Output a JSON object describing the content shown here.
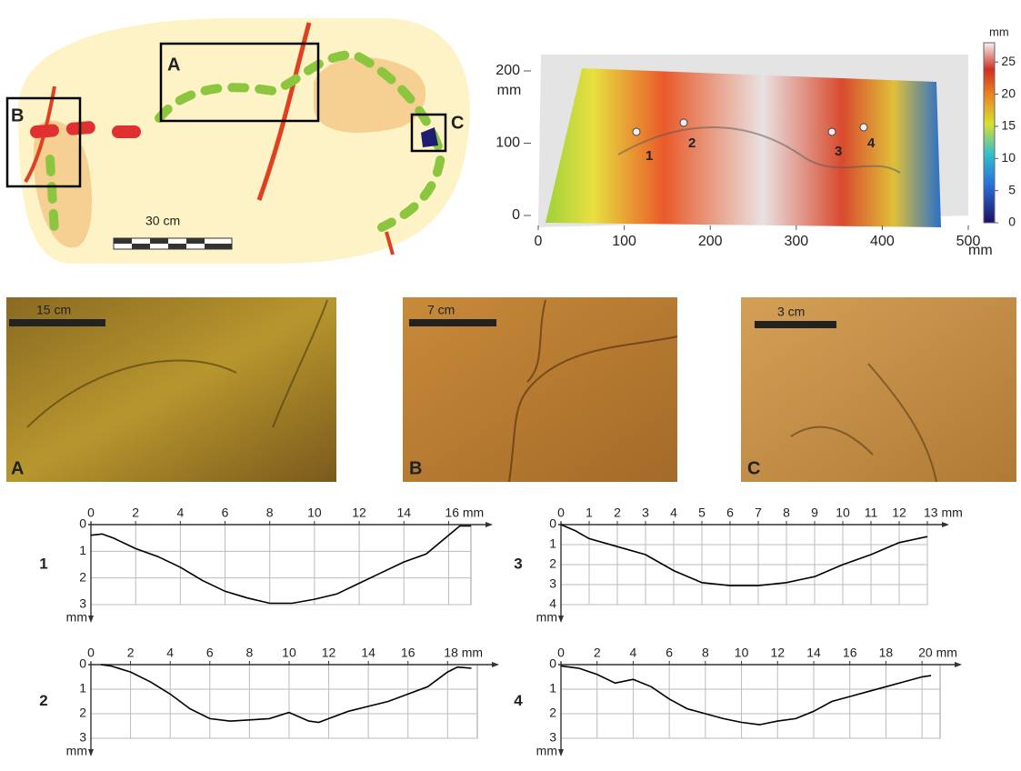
{
  "map": {
    "labels": [
      "A",
      "B",
      "C"
    ],
    "scale": "30 cm"
  },
  "surface": {
    "xticks": [
      0,
      100,
      200,
      300,
      400,
      500
    ],
    "xlim": [
      0,
      500
    ],
    "x_unit": "mm",
    "yticks": [
      0,
      100,
      200
    ],
    "ylim": [
      0,
      200
    ],
    "y_unit": "mm",
    "colorbar_ticks": [
      0,
      5,
      10,
      15,
      20,
      25
    ],
    "colorbar_lim": [
      0,
      28
    ],
    "colorbar_unit": "mm",
    "profile_markers": [
      "1",
      "2",
      "3",
      "4"
    ]
  },
  "photos": [
    {
      "label": "A",
      "scale": "15 cm"
    },
    {
      "label": "B",
      "scale": "7 cm"
    },
    {
      "label": "C",
      "scale": "3 cm"
    }
  ],
  "chart_data": [
    {
      "type": "line",
      "row_label": "1",
      "color": "#000000",
      "grid": true,
      "x": [
        0,
        0.5,
        1,
        2,
        3,
        4,
        5,
        6,
        7,
        8,
        9,
        10,
        11,
        12,
        13,
        14,
        15,
        16,
        16.5,
        17
      ],
      "values": [
        0.4,
        0.35,
        0.5,
        0.9,
        1.2,
        1.6,
        2.1,
        2.5,
        2.75,
        2.95,
        2.95,
        2.8,
        2.6,
        2.2,
        1.8,
        1.4,
        1.1,
        0.4,
        0.05,
        0.05
      ],
      "xlim": [
        0,
        17
      ],
      "xticks": [
        0,
        2,
        4,
        6,
        8,
        10,
        12,
        14,
        {
          "value": 16,
          "label": "16 mm"
        }
      ],
      "ylim": [
        0,
        3
      ],
      "yticks": [
        0,
        1,
        2,
        3
      ],
      "y_unit": "mm"
    },
    {
      "type": "line",
      "row_label": "3",
      "color": "#000000",
      "grid": true,
      "x": [
        0,
        0.5,
        1,
        2,
        3,
        4,
        5,
        6,
        7,
        8,
        9,
        10,
        11,
        12,
        13
      ],
      "values": [
        0,
        0.3,
        0.7,
        1.1,
        1.5,
        2.3,
        2.9,
        3.05,
        3.05,
        2.9,
        2.6,
        2.0,
        1.5,
        0.9,
        0.6
      ],
      "xlim": [
        0,
        13
      ],
      "xticks": [
        0,
        1,
        2,
        3,
        4,
        5,
        6,
        7,
        8,
        9,
        10,
        11,
        12,
        {
          "value": 13,
          "label": "13 mm"
        }
      ],
      "ylim": [
        0,
        4
      ],
      "yticks": [
        0,
        1,
        2,
        3,
        4
      ],
      "y_unit": "mm"
    },
    {
      "type": "line",
      "row_label": "2",
      "color": "#000000",
      "grid": true,
      "x": [
        0.5,
        1,
        2,
        3,
        4,
        5,
        6,
        7,
        8,
        9,
        10,
        11,
        11.5,
        12,
        13,
        14,
        15,
        16,
        17,
        18,
        18.5,
        19.2
      ],
      "values": [
        0,
        0.05,
        0.3,
        0.7,
        1.2,
        1.8,
        2.2,
        2.3,
        2.25,
        2.2,
        1.95,
        2.3,
        2.35,
        2.2,
        1.9,
        1.7,
        1.5,
        1.2,
        0.9,
        0.3,
        0.1,
        0.15
      ],
      "xlim": [
        0,
        19.5
      ],
      "xticks": [
        0,
        2,
        4,
        6,
        8,
        10,
        12,
        14,
        16,
        {
          "value": 18,
          "label": "18 mm"
        }
      ],
      "ylim": [
        0,
        3
      ],
      "yticks": [
        0,
        1,
        2,
        3
      ],
      "y_unit": "mm"
    },
    {
      "type": "line",
      "row_label": "4",
      "color": "#000000",
      "grid": true,
      "x": [
        0,
        1,
        2,
        3,
        4,
        5,
        6,
        7,
        8,
        9,
        10,
        11,
        12,
        13,
        14,
        15,
        16,
        17,
        18,
        19,
        20,
        20.5
      ],
      "values": [
        0.05,
        0.15,
        0.4,
        0.75,
        0.6,
        0.9,
        1.4,
        1.8,
        2.0,
        2.2,
        2.35,
        2.45,
        2.3,
        2.2,
        1.9,
        1.5,
        1.3,
        1.1,
        0.9,
        0.7,
        0.5,
        0.45
      ],
      "xlim": [
        0,
        21
      ],
      "xticks": [
        0,
        2,
        4,
        6,
        8,
        10,
        12,
        14,
        16,
        18,
        {
          "value": 20,
          "label": "20 mm"
        }
      ],
      "ylim": [
        0,
        3
      ],
      "yticks": [
        0,
        1,
        2,
        3
      ],
      "y_unit": "mm"
    }
  ]
}
